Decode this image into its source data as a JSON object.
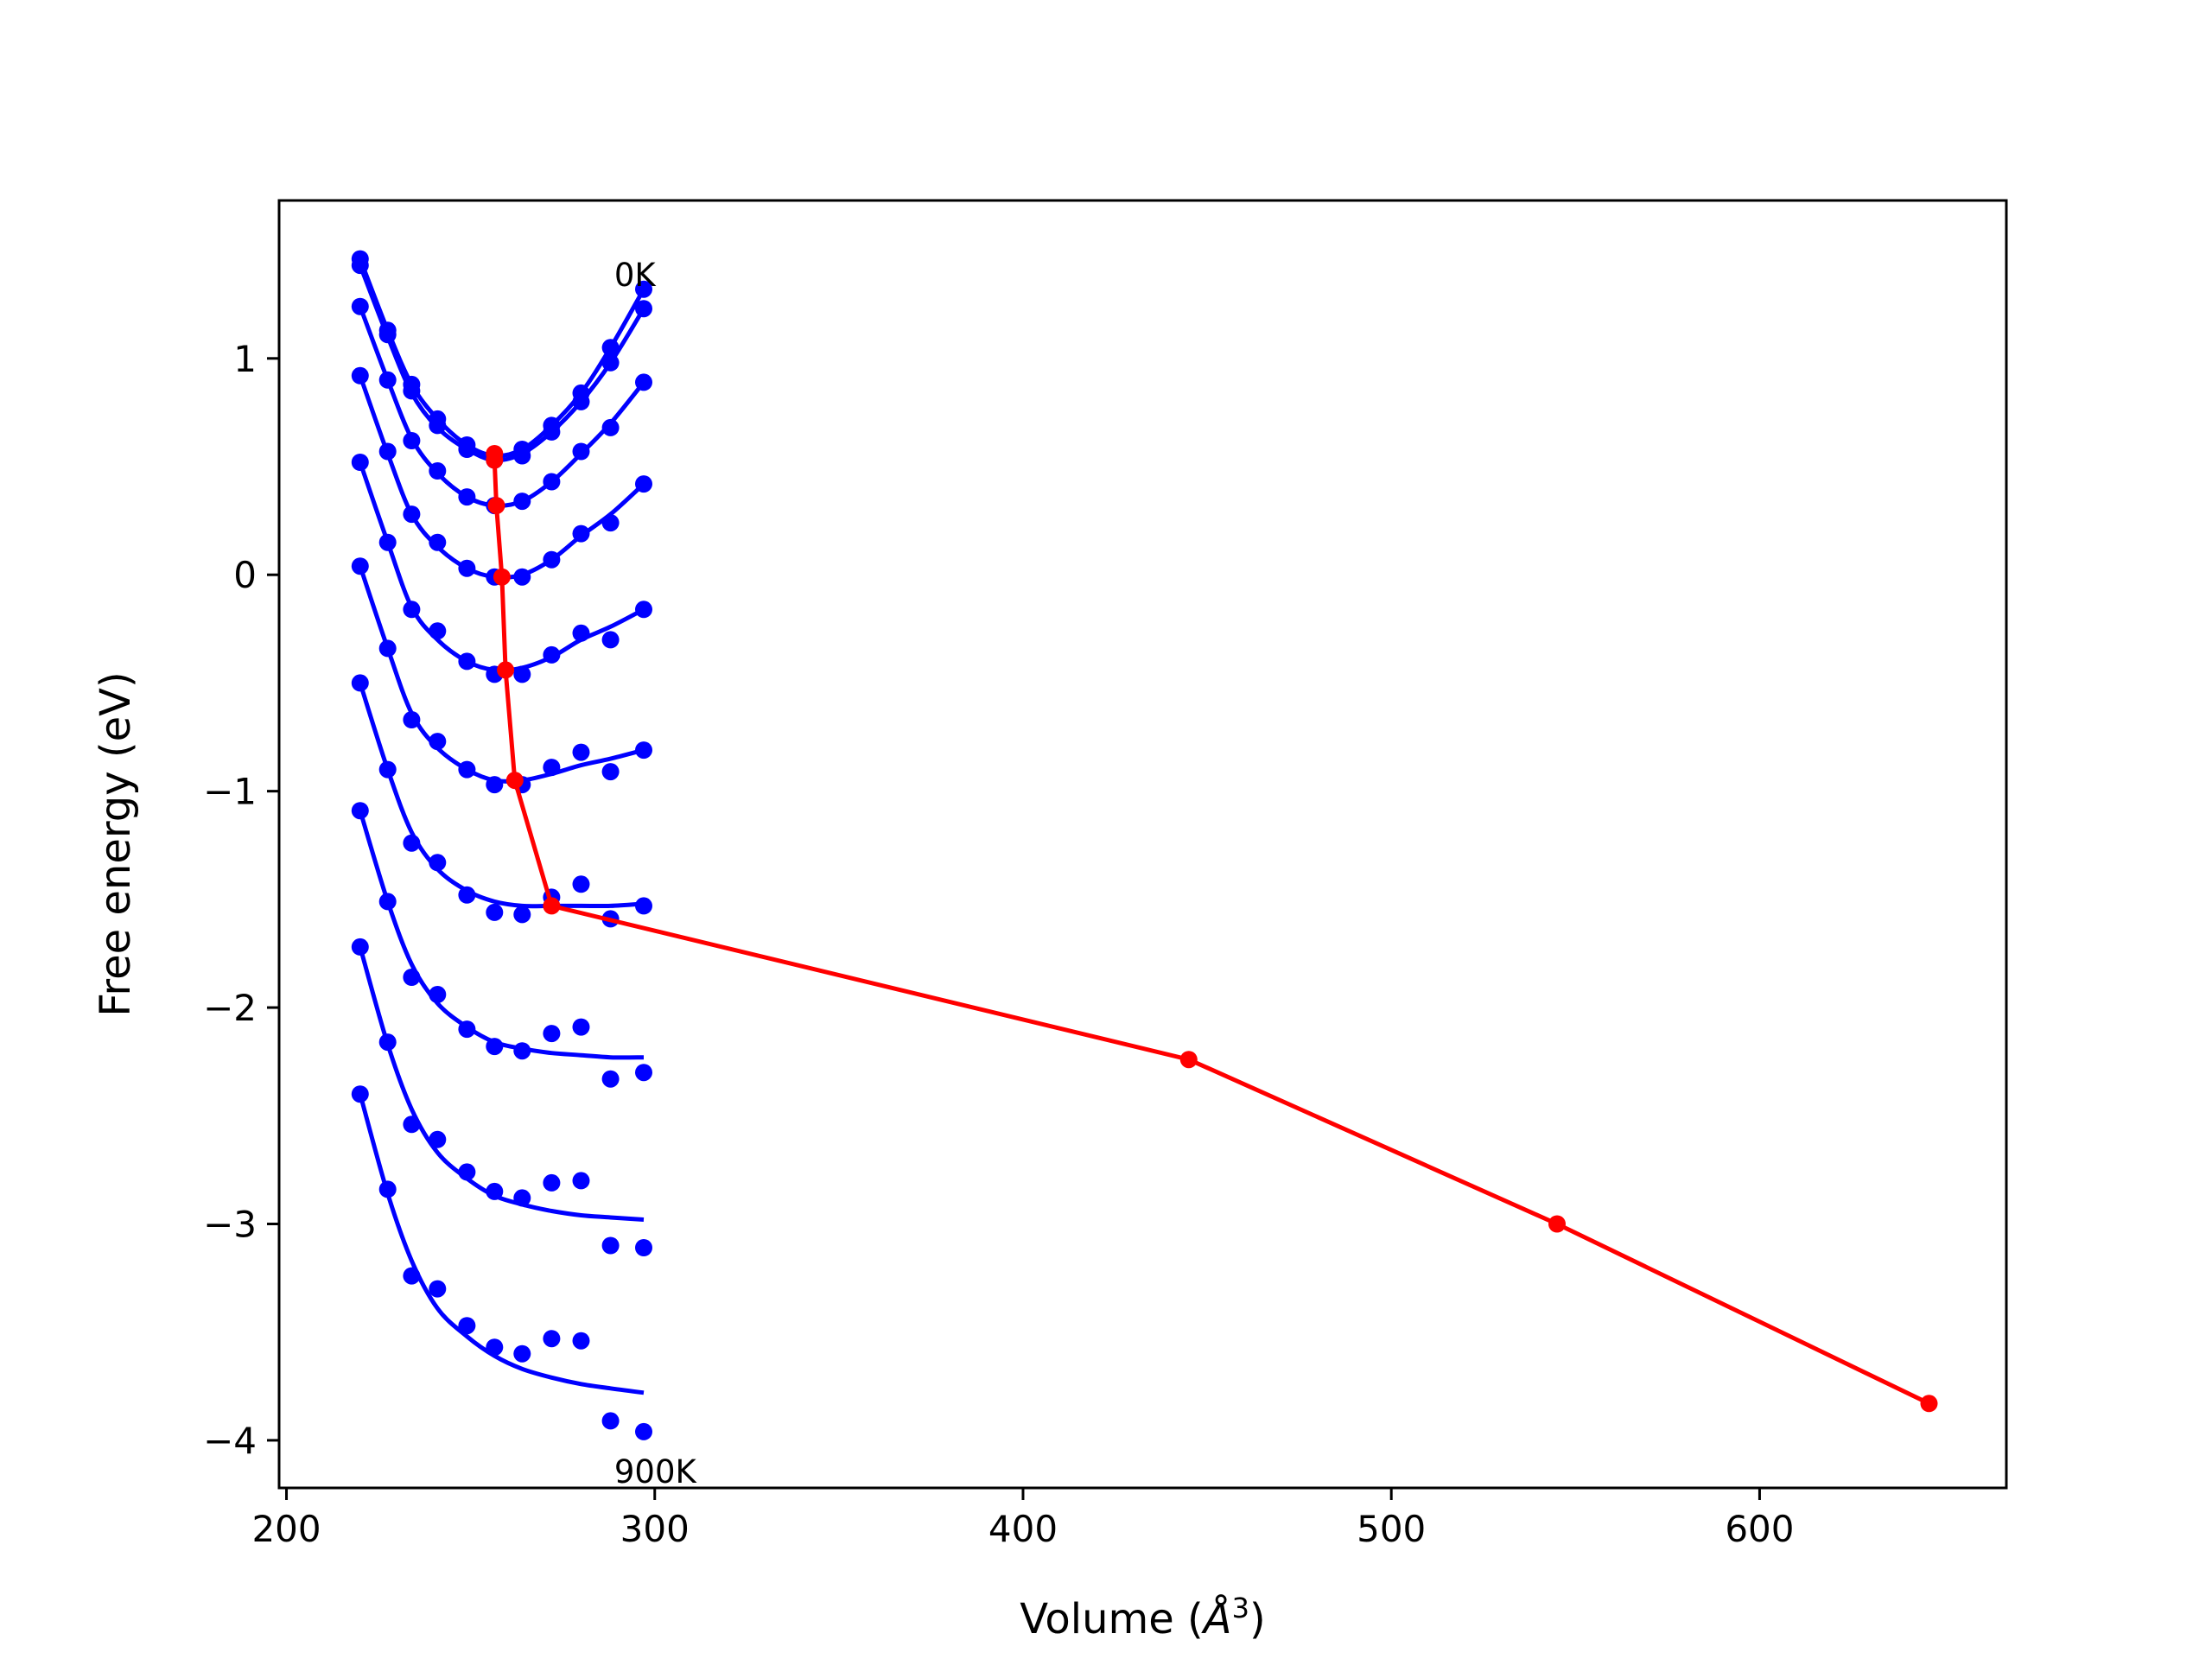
{
  "chart_data": {
    "type": "line",
    "title": "",
    "xlabel": "Volume (",
    "xlabel_symbol": "Å",
    "xlabel_sup": "3",
    "xlabel_close": ")",
    "ylabel": "Free energy (eV)",
    "xlim": [
      198,
      667
    ],
    "ylim": [
      -4.22,
      1.73
    ],
    "xticks": [
      200,
      300,
      400,
      500,
      600
    ],
    "yticks": [
      1,
      0,
      -1,
      -2,
      -3,
      -4
    ],
    "ytick_labels": [
      "1",
      "0",
      "−1",
      "−2",
      "−3",
      "−4"
    ],
    "grid": false,
    "legend": "none",
    "colors": {
      "points": "#0000ff",
      "curves": "#0000ff",
      "minima": "#ff0000"
    },
    "annotations": [
      {
        "text": "0K",
        "x": 289,
        "y": 1.39
      },
      {
        "text": "900K",
        "x": 289,
        "y": -4.14
      }
    ],
    "volumes": [
      220,
      227.5,
      234,
      241,
      249,
      256.5,
      264,
      272,
      280,
      288,
      297
    ],
    "series": [
      {
        "points": [
          1.46,
          1.13,
          0.88,
          0.72,
          0.6,
          0.55,
          0.58,
          0.69,
          0.84,
          1.05,
          1.32
        ],
        "fit": [
          1.46,
          1.13,
          0.88,
          0.72,
          0.6,
          0.55,
          0.58,
          0.69,
          0.84,
          1.05,
          1.32
        ]
      },
      {
        "points": [
          1.43,
          1.11,
          0.85,
          0.69,
          0.58,
          0.53,
          0.55,
          0.66,
          0.8,
          0.98,
          1.23
        ],
        "fit": [
          1.43,
          1.1,
          0.84,
          0.68,
          0.58,
          0.53,
          0.56,
          0.66,
          0.8,
          0.98,
          1.23
        ]
      },
      {
        "points": [
          1.24,
          0.9,
          0.62,
          0.48,
          0.36,
          0.32,
          0.34,
          0.43,
          0.57,
          0.68,
          0.89
        ],
        "fit": [
          1.24,
          0.9,
          0.63,
          0.47,
          0.36,
          0.32,
          0.34,
          0.43,
          0.56,
          0.7,
          0.89
        ]
      },
      {
        "points": [
          0.92,
          0.57,
          0.28,
          0.15,
          0.03,
          -0.01,
          -0.01,
          0.07,
          0.19,
          0.24,
          0.42
        ],
        "fit": [
          0.92,
          0.56,
          0.28,
          0.13,
          0.03,
          -0.01,
          0.0,
          0.07,
          0.18,
          0.28,
          0.42
        ]
      },
      {
        "points": [
          0.52,
          0.15,
          -0.16,
          -0.26,
          -0.4,
          -0.46,
          -0.46,
          -0.37,
          -0.27,
          -0.3,
          -0.16
        ],
        "fit": [
          0.52,
          0.15,
          -0.15,
          -0.3,
          -0.4,
          -0.44,
          -0.43,
          -0.38,
          -0.3,
          -0.24,
          -0.16
        ]
      },
      {
        "points": [
          0.04,
          -0.34,
          -0.67,
          -0.77,
          -0.9,
          -0.97,
          -0.97,
          -0.89,
          -0.82,
          -0.91,
          -0.81
        ],
        "fit": [
          0.04,
          -0.34,
          -0.64,
          -0.8,
          -0.9,
          -0.95,
          -0.95,
          -0.92,
          -0.88,
          -0.85,
          -0.81
        ]
      },
      {
        "points": [
          -0.5,
          -0.9,
          -1.24,
          -1.33,
          -1.48,
          -1.56,
          -1.57,
          -1.49,
          -1.43,
          -1.59,
          -1.53
        ],
        "fit": [
          -0.5,
          -0.9,
          -1.19,
          -1.36,
          -1.46,
          -1.51,
          -1.53,
          -1.53,
          -1.53,
          -1.53,
          -1.52
        ]
      },
      {
        "points": [
          -1.09,
          -1.51,
          -1.86,
          -1.94,
          -2.1,
          -2.18,
          -2.2,
          -2.12,
          -2.09,
          -2.33,
          -2.3
        ],
        "fit": [
          -1.09,
          -1.51,
          -1.8,
          -1.98,
          -2.09,
          -2.16,
          -2.19,
          -2.21,
          -2.22,
          -2.23,
          -2.23
        ]
      },
      {
        "points": [
          -1.72,
          -2.16,
          -2.54,
          -2.61,
          -2.76,
          -2.85,
          -2.88,
          -2.81,
          -2.8,
          -3.1,
          -3.11
        ],
        "fit": [
          -1.72,
          -2.17,
          -2.47,
          -2.67,
          -2.79,
          -2.87,
          -2.91,
          -2.94,
          -2.96,
          -2.97,
          -2.98
        ]
      },
      {
        "points": [
          -2.4,
          -2.84,
          -3.24,
          -3.3,
          -3.47,
          -3.57,
          -3.6,
          -3.53,
          -3.54,
          -3.91,
          -3.96
        ],
        "fit": [
          -2.4,
          -2.86,
          -3.17,
          -3.39,
          -3.52,
          -3.61,
          -3.67,
          -3.71,
          -3.74,
          -3.76,
          -3.78
        ]
      }
    ],
    "minima_line": {
      "x": [
        256.5,
        256.5,
        257,
        258.5,
        259.5,
        262,
        272,
        445,
        545,
        646
      ],
      "y": [
        0.56,
        0.53,
        0.32,
        -0.01,
        -0.44,
        -0.95,
        -1.53,
        -2.24,
        -3.0,
        -3.83
      ]
    }
  }
}
